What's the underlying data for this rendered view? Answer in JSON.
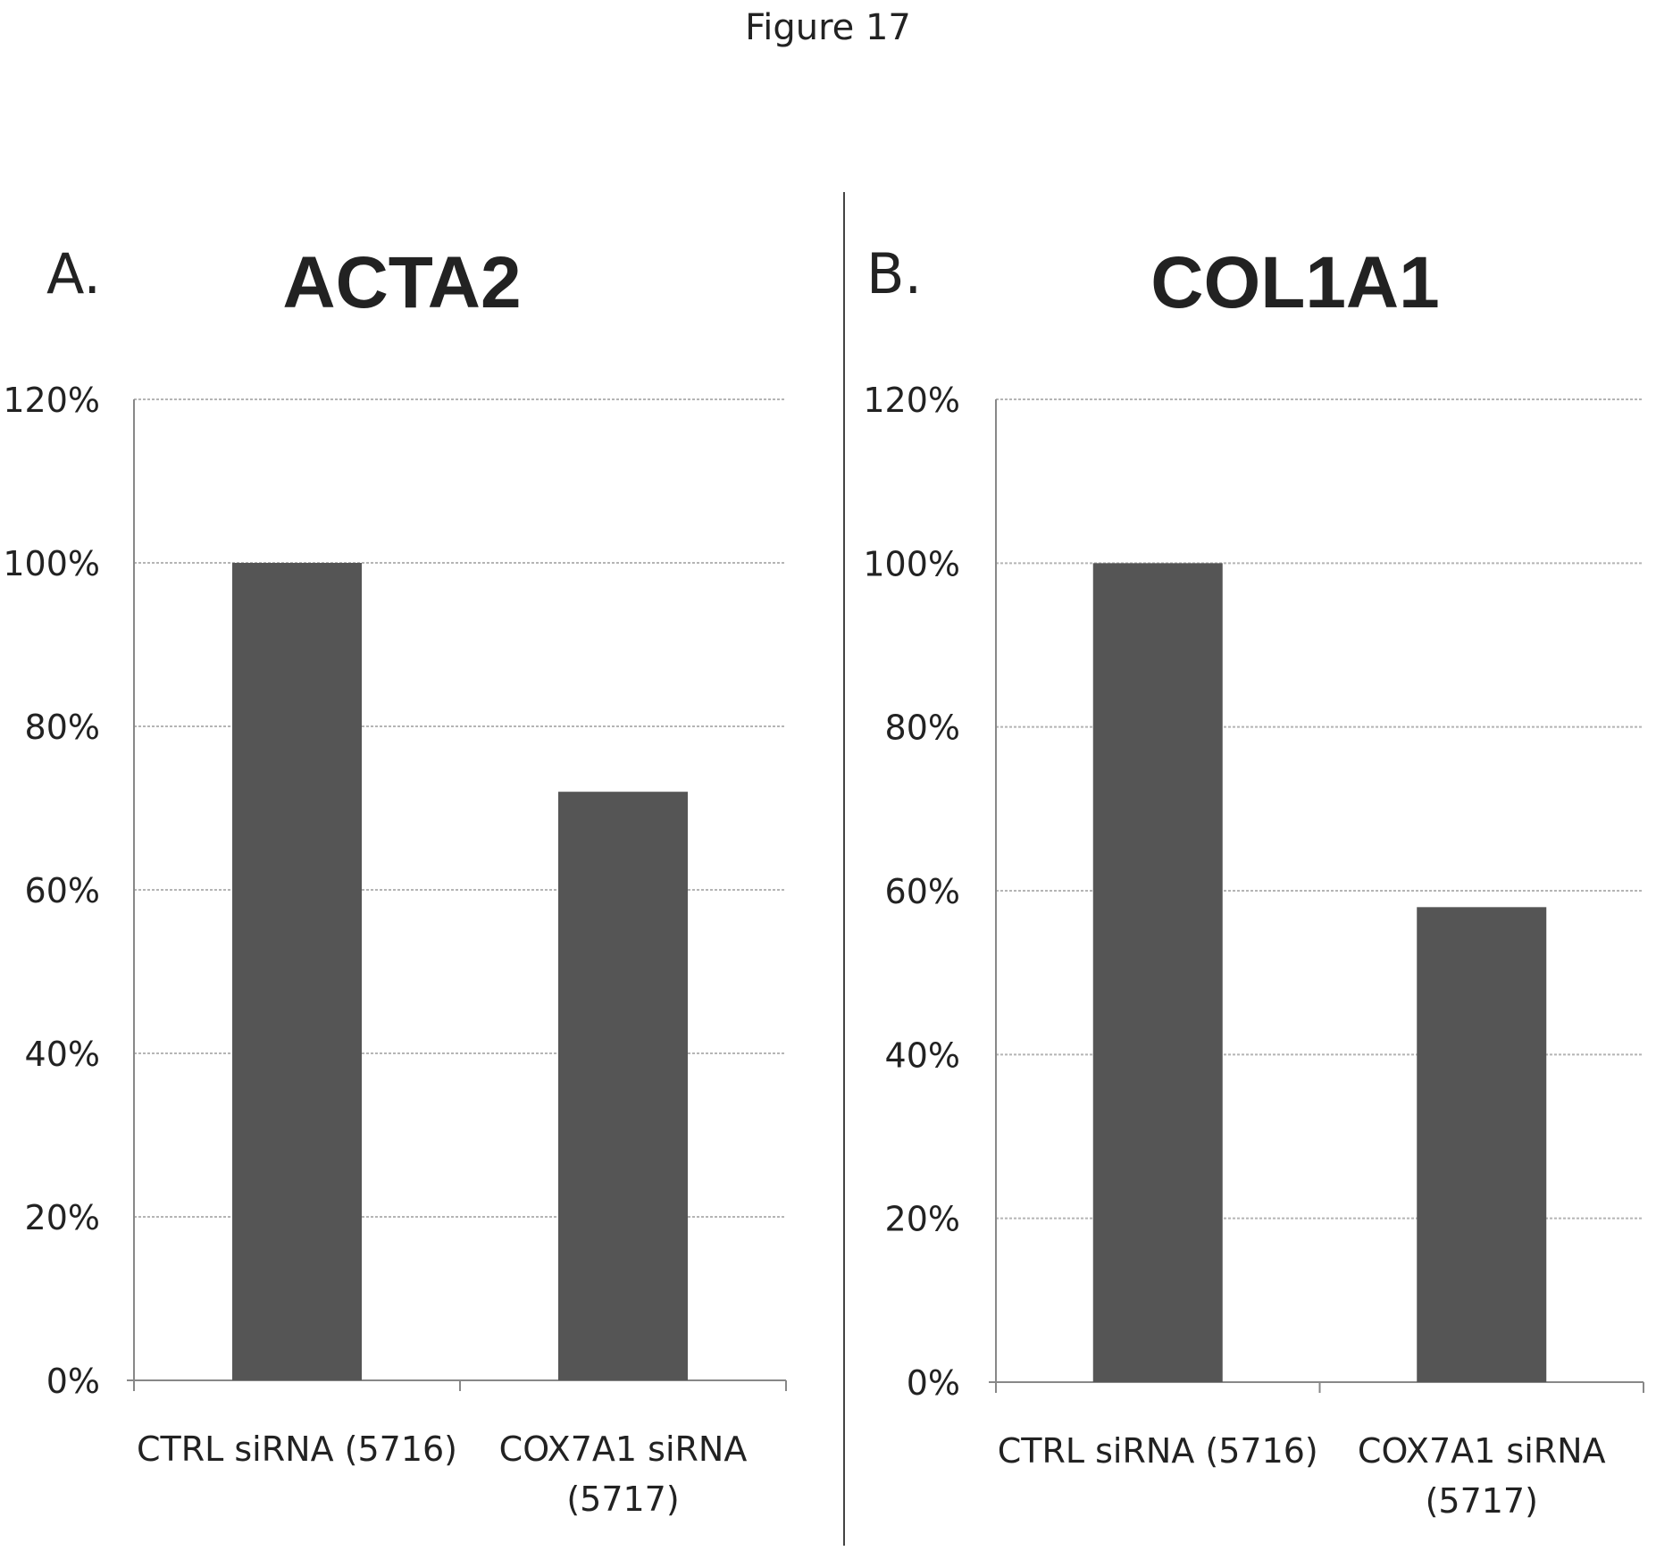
{
  "figure": {
    "title": "Figure 17"
  },
  "chart_data": [
    {
      "type": "bar",
      "panel": "A.",
      "title": "ACTA2",
      "categories": [
        "CTRL siRNA (5716)",
        "COX7A1 siRNA (5717)"
      ],
      "values": [
        100,
        72
      ],
      "ylim": [
        0,
        120
      ],
      "yticks": [
        "0%",
        "20%",
        "40%",
        "60%",
        "80%",
        "100%",
        "120%"
      ],
      "grid": true,
      "bar_color": "#555555"
    },
    {
      "type": "bar",
      "panel": "B.",
      "title": "COL1A1",
      "categories": [
        "CTRL siRNA (5716)",
        "COX7A1 siRNA (5717)"
      ],
      "values": [
        100,
        58
      ],
      "ylim": [
        0,
        120
      ],
      "yticks": [
        "0%",
        "20%",
        "40%",
        "60%",
        "80%",
        "100%",
        "120%"
      ],
      "grid": true,
      "bar_color": "#555555"
    }
  ]
}
